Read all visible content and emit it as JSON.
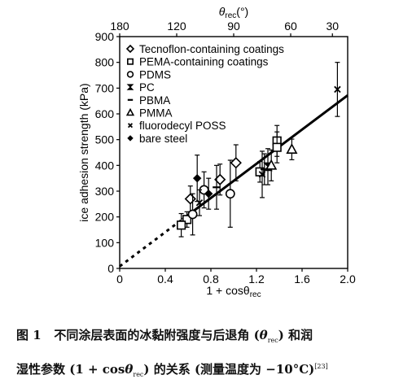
{
  "chart_data": {
    "type": "scatter",
    "x_top_label_base": "θ",
    "x_top_label_sub": "rec",
    "x_top_label_unit": "(°)",
    "x_bottom_label": "1 + cosθ",
    "x_bottom_label_sub": "rec",
    "ylabel": "ice adhesion strength (kPa)",
    "xlim": [
      0,
      2.0
    ],
    "ylim": [
      0,
      900
    ],
    "x_ticks": [
      "0",
      "0.4",
      "0.8",
      "1.2",
      "1.6",
      "2.0"
    ],
    "y_ticks": [
      "0",
      "100",
      "200",
      "300",
      "400",
      "500",
      "600",
      "700",
      "800",
      "900"
    ],
    "top_ticks": [
      "180",
      "120",
      "90",
      "60",
      "30"
    ],
    "legend_placement": "top-left",
    "series": [
      {
        "name": "Tecnoflon-containing coatings",
        "marker": "diamond",
        "points": [
          [
            1.02,
            410,
            70
          ],
          [
            0.88,
            345,
            60
          ],
          [
            0.62,
            270,
            50
          ]
        ]
      },
      {
        "name": "PEMA-containing coatings",
        "marker": "square",
        "points": [
          [
            1.38,
            495,
            60
          ],
          [
            1.23,
            375,
            40
          ],
          [
            0.59,
            190,
            30
          ],
          [
            0.54,
            168,
            45
          ],
          [
            1.38,
            470,
            60
          ]
        ]
      },
      {
        "name": "PDMS",
        "marker": "circle",
        "points": [
          [
            0.64,
            210,
            80
          ],
          [
            0.97,
            290,
            130
          ],
          [
            0.74,
            305,
            70
          ]
        ]
      },
      {
        "name": "PC",
        "marker": "bowtie",
        "points": [
          [
            1.3,
            395,
            70
          ]
        ]
      },
      {
        "name": "PBMA",
        "marker": "dash",
        "points": [
          [
            1.27,
            385,
            60
          ],
          [
            0.85,
            315,
            85
          ]
        ]
      },
      {
        "name": "PMMA",
        "marker": "triangle",
        "points": [
          [
            1.51,
            462,
            40
          ],
          [
            1.33,
            400,
            60
          ]
        ]
      },
      {
        "name": "fluorodecyl POSS",
        "marker": "cross",
        "points": [
          [
            1.91,
            695,
            105
          ],
          [
            0.7,
            255,
            50
          ],
          [
            1.25,
            365,
            90
          ]
        ]
      },
      {
        "name": "bare steel",
        "marker": "plus",
        "points": [
          [
            0.68,
            350,
            90
          ],
          [
            0.78,
            290,
            60
          ]
        ]
      }
    ],
    "fit_line": {
      "solid_from": 0.55,
      "dashed_from": 0,
      "to": 2.0,
      "intercept": 8,
      "slope": 332
    }
  },
  "caption": {
    "fig_label": "图 1",
    "line1_a": "不同涂层表面的冰黏附强度与后退角 (",
    "line1_theta": "θ",
    "line1_sub": "rec",
    "line1_b": ") 和润",
    "line2_a": "湿性参数 (1 + cos",
    "line2_theta": "θ",
    "line2_sub": "rec",
    "line2_b": ") 的关系 (测量温度为 −10°C)",
    "ref": "[23]"
  }
}
